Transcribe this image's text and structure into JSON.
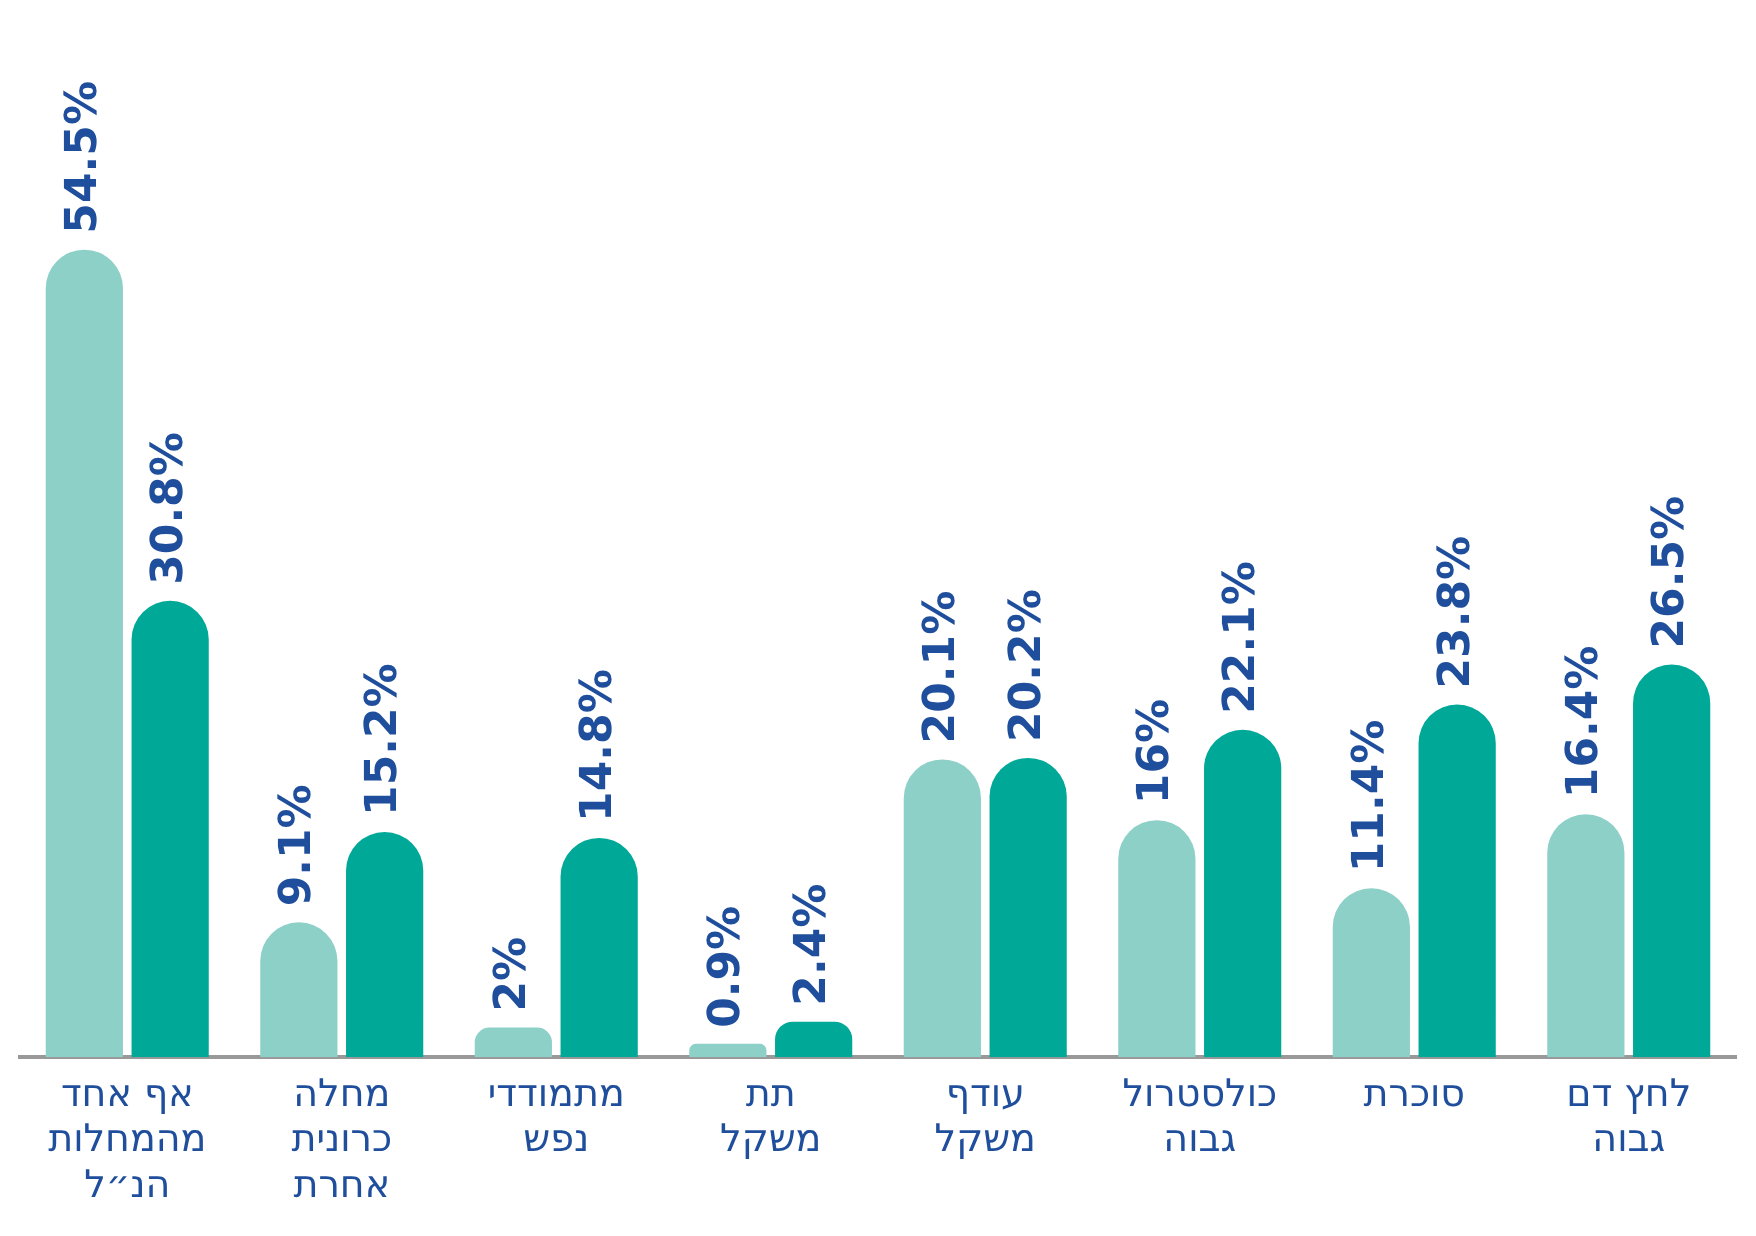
{
  "chart_data": {
    "type": "bar",
    "categories": [
      "אף אחד מהמחלות הנ״ל",
      "מחלה כרונית אחרת",
      "מתמודדי נפש",
      "תת משקל",
      "עודף משקל",
      "כולסטרול גבוה",
      "סוכרת",
      "לחץ דם גבוה"
    ],
    "series": [
      {
        "color": "#8dd0c7",
        "values": [
          54.5,
          9.1,
          2,
          0.9,
          20.1,
          16,
          11.4,
          16.4
        ],
        "value_labels": [
          "54.5%",
          "9.1%",
          "2%",
          "0.9%",
          "20.1%",
          "16%",
          "11.4%",
          "16.4%"
        ]
      },
      {
        "color": "#00a898",
        "values": [
          30.8,
          15.2,
          14.8,
          2.4,
          20.2,
          22.1,
          23.8,
          26.5
        ],
        "value_labels": [
          "30.8%",
          "15.2%",
          "14.8%",
          "2.4%",
          "20.2%",
          "22.1%",
          "23.8%",
          "26.5%"
        ]
      }
    ],
    "grid": false,
    "legend": false
  }
}
